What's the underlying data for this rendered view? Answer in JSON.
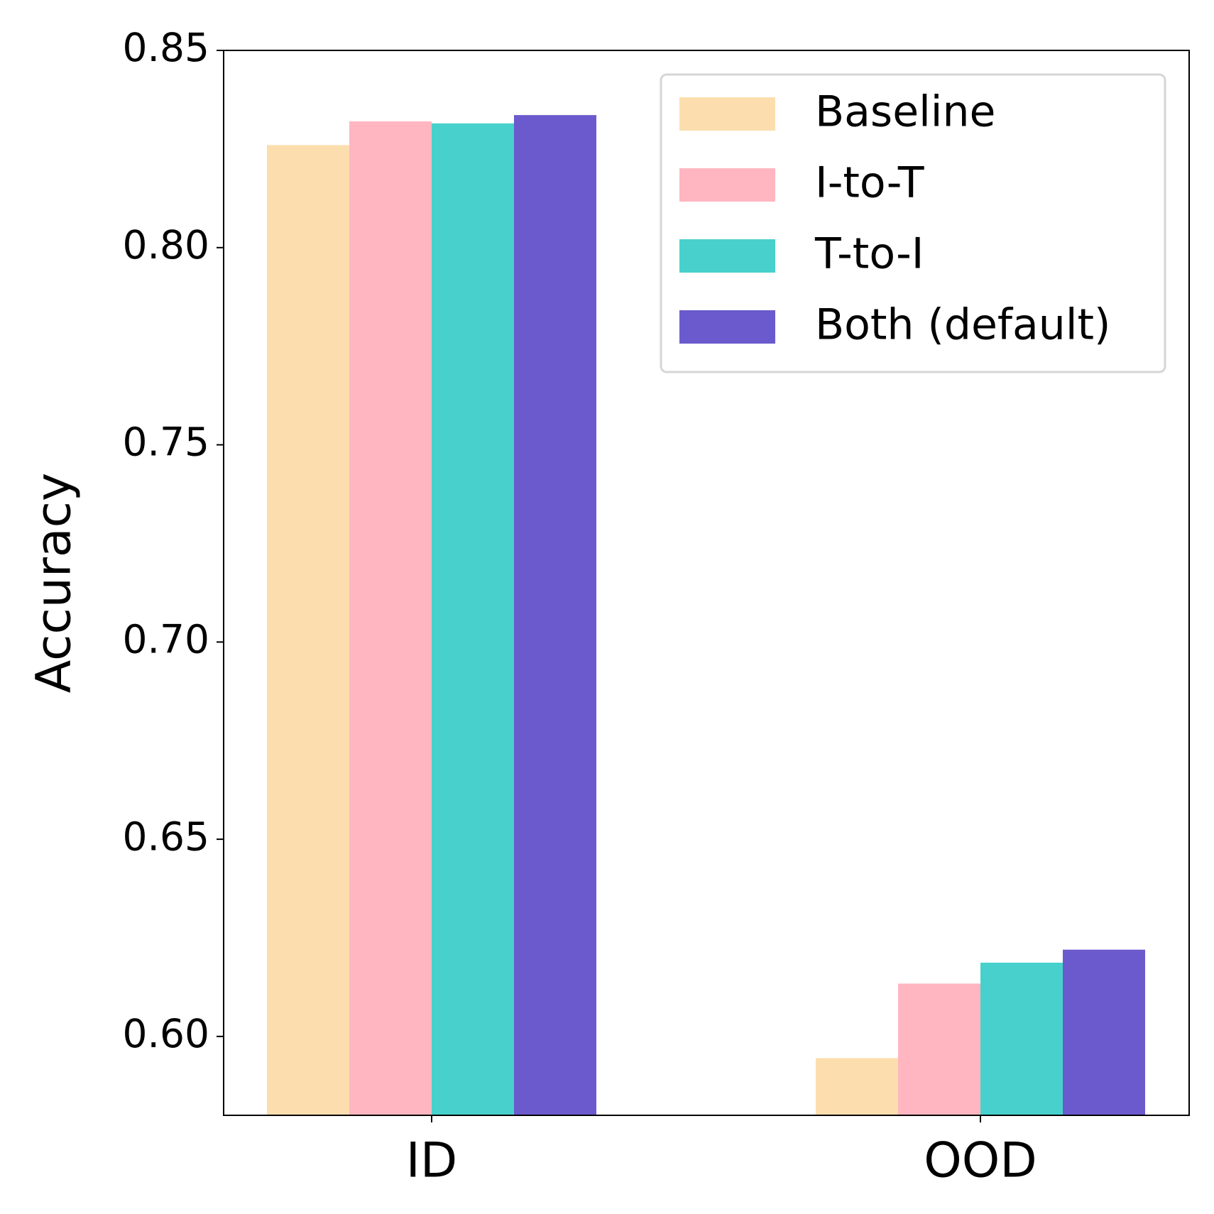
{
  "chart_data": {
    "type": "bar",
    "categories": [
      "ID",
      "OOD"
    ],
    "ylabel": "Accuracy",
    "series": [
      {
        "name": "Baseline",
        "color": "#fcdeae",
        "values": [
          0.826,
          0.5945
        ]
      },
      {
        "name": "I-to-T",
        "color": "#ffb6c1",
        "values": [
          0.832,
          0.6134
        ]
      },
      {
        "name": "T-to-I",
        "color": "#48d1cc",
        "values": [
          0.8315,
          0.6187
        ]
      },
      {
        "name": "Both (default)",
        "color": "#6a5acd",
        "values": [
          0.8336,
          0.622
        ]
      }
    ],
    "ylim": [
      0.58,
      0.85
    ],
    "yticks": [
      {
        "value": 0.6,
        "label": "0.60"
      },
      {
        "value": 0.65,
        "label": "0.65"
      },
      {
        "value": 0.7,
        "label": "0.70"
      },
      {
        "value": 0.75,
        "label": "0.75"
      },
      {
        "value": 0.8,
        "label": "0.80"
      },
      {
        "value": 0.85,
        "label": "0.85"
      }
    ],
    "legend": "upper right"
  }
}
